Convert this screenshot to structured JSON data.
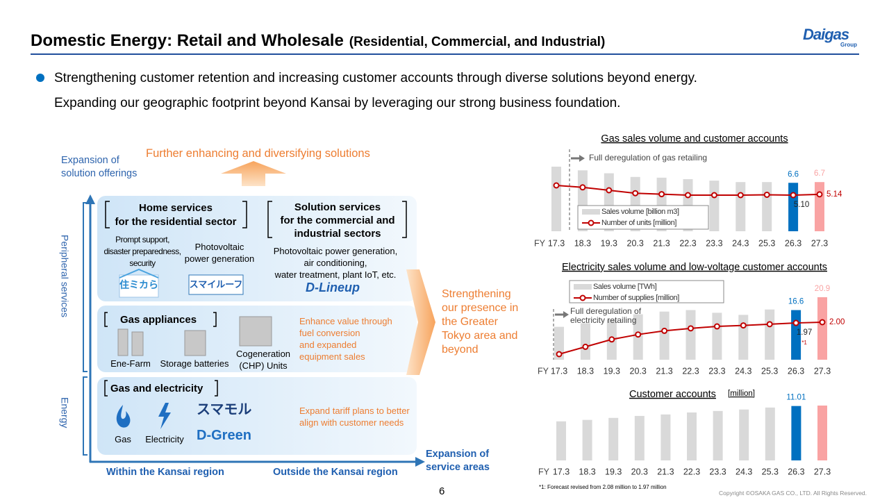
{
  "header": {
    "title": "Domestic Energy: Retail and Wholesale",
    "title_note": "(Residential, Commercial, and Industrial)",
    "logo": "Daigas",
    "logo_sub": "Group"
  },
  "bullets": [
    "Strengthening customer retention and increasing customer accounts through diverse solutions beyond energy.",
    "Expanding our geographic footprint beyond Kansai by leveraging our strong business foundation."
  ],
  "diagram": {
    "y_axis_label": "Expansion of\nsolution offerings",
    "top_arrow_label": "Further enhancing and diversifying solutions",
    "side_labels": [
      "Peripheral services",
      "Energy"
    ],
    "home": {
      "title": "Home services\nfor the residential sector",
      "items": [
        "Prompt support,\ndisaster preparedness,\nsecurity",
        "Photovoltaic\npower generation"
      ],
      "logos": [
        "住ミカら",
        "スマイルーフ"
      ]
    },
    "solution": {
      "title": "Solution services\nfor the commercial and\nindustrial sectors",
      "items": [
        "Photovoltaic power generation,\nair conditioning,\nwater treatment, plant IoT, etc."
      ],
      "logos": [
        "D-Lineup"
      ]
    },
    "appliances": {
      "title": "Gas appliances",
      "items": [
        "Ene-Farm",
        "Storage batteries",
        "Cogeneration\n(CHP) Units"
      ],
      "note": "Enhance value through\nfuel conversion\nand expanded\nequipment sales"
    },
    "energy": {
      "title": "Gas and electricity",
      "items": [
        "Gas",
        "Electricity"
      ],
      "logos": [
        "スマモル",
        "D-Green"
      ],
      "note": "Expand tariff plans to better\nalign with customer needs"
    },
    "right_arrow_label": "Strengthening\nour presence in\nthe Greater\nTokyo area and\nbeyond",
    "x_axis_label": "Expansion of\nservice areas",
    "x_categories": [
      "Within the Kansai region",
      "Outside the Kansai region"
    ]
  },
  "chart_data": [
    {
      "type": "combo",
      "title": "Gas sales volume and customer accounts",
      "annotation": "Full deregulation of gas retailing",
      "x_prefix": "FY",
      "categories": [
        "17.3",
        "18.3",
        "19.3",
        "20.3",
        "21.3",
        "22.3",
        "23.3",
        "24.3",
        "25.3",
        "26.3",
        "27.3"
      ],
      "series": [
        {
          "name": "Sales volume [billion m3]",
          "kind": "bar",
          "color": "#d9d9d9",
          "colors": [
            "#d9d9d9",
            "#d9d9d9",
            "#d9d9d9",
            "#d9d9d9",
            "#d9d9d9",
            "#d9d9d9",
            "#d9d9d9",
            "#d9d9d9",
            "#d9d9d9",
            "#0070c0",
            "#f9a3a3"
          ],
          "values": [
            8.8,
            8.3,
            7.9,
            7.4,
            7.3,
            7.1,
            6.9,
            6.7,
            6.7,
            6.6,
            6.7
          ],
          "value_labels": [
            null,
            null,
            null,
            null,
            null,
            null,
            null,
            null,
            null,
            "6.6",
            "6.7"
          ]
        },
        {
          "name": "Number of units [million]",
          "kind": "line",
          "color": "#c00000",
          "values": [
            5.6,
            5.5,
            5.35,
            5.2,
            5.15,
            5.1,
            5.1,
            5.1,
            5.12,
            5.1,
            5.14
          ],
          "value_labels": [
            null,
            null,
            null,
            null,
            null,
            null,
            null,
            null,
            null,
            "5.10",
            "5.14"
          ]
        }
      ]
    },
    {
      "type": "combo",
      "title": "Electricity sales volume and low-voltage customer accounts",
      "annotation": "Full deregulation of\nelectricity retailing",
      "x_prefix": "FY",
      "categories": [
        "17.3",
        "18.3",
        "19.3",
        "20.3",
        "21.3",
        "22.3",
        "23.3",
        "24.3",
        "25.3",
        "26.3",
        "27.3"
      ],
      "series": [
        {
          "name": "Sales volume [TWh]",
          "kind": "bar",
          "color": "#d9d9d9",
          "colors": [
            "#d9d9d9",
            "#d9d9d9",
            "#d9d9d9",
            "#d9d9d9",
            "#d9d9d9",
            "#d9d9d9",
            "#d9d9d9",
            "#d9d9d9",
            "#d9d9d9",
            "#0070c0",
            "#f9a3a3"
          ],
          "values": [
            11,
            12.2,
            13.4,
            15.2,
            16.1,
            16.6,
            15.7,
            15,
            16.8,
            16.6,
            20.9
          ],
          "value_labels": [
            null,
            null,
            null,
            null,
            null,
            null,
            null,
            null,
            null,
            "16.6",
            "20.9"
          ]
        },
        {
          "name": "Number of supplies [million]",
          "kind": "line",
          "color": "#c00000",
          "values": [
            0.7,
            1.0,
            1.3,
            1.5,
            1.65,
            1.75,
            1.83,
            1.87,
            1.92,
            1.97,
            2.0
          ],
          "value_labels": [
            null,
            null,
            null,
            null,
            null,
            null,
            null,
            null,
            null,
            "1.97",
            "2.00"
          ],
          "value_notes": [
            null,
            null,
            null,
            null,
            null,
            null,
            null,
            null,
            null,
            "*1",
            null
          ]
        }
      ]
    },
    {
      "type": "bar",
      "title": "Customer accounts",
      "unit": "[million]",
      "x_prefix": "FY",
      "categories": [
        "17.3",
        "18.3",
        "19.3",
        "20.3",
        "21.3",
        "22.3",
        "23.3",
        "24.3",
        "25.3",
        "26.3",
        "27.3"
      ],
      "color": "#d9d9d9",
      "colors": [
        "#d9d9d9",
        "#d9d9d9",
        "#d9d9d9",
        "#d9d9d9",
        "#d9d9d9",
        "#d9d9d9",
        "#d9d9d9",
        "#d9d9d9",
        "#d9d9d9",
        "#0070c0",
        "#f9a3a3"
      ],
      "values": [
        7.9,
        8.2,
        8.6,
        9.0,
        9.3,
        9.7,
        10.0,
        10.3,
        10.7,
        11.01,
        11.1
      ],
      "value_labels": [
        null,
        null,
        null,
        null,
        null,
        null,
        null,
        null,
        null,
        "11.01",
        null
      ]
    }
  ],
  "footnote": "*1: Forecast revised from 2.08 million to 1.97 million",
  "page_number": "6",
  "copyright": "Copyright ©OSAKA GAS CO., LTD. All Rights Reserved."
}
